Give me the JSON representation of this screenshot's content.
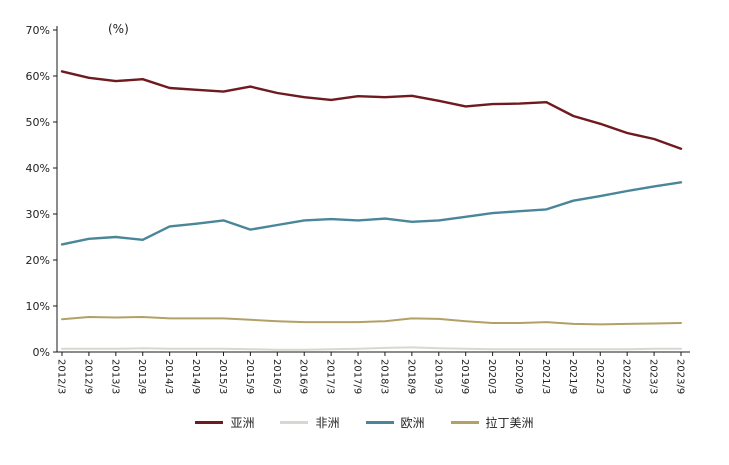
{
  "unit_label": "(%)",
  "chart_data": {
    "type": "line",
    "title": "",
    "xlabel": "",
    "ylabel": "(%)",
    "ylim": [
      0,
      70
    ],
    "ytick_step": 10,
    "ytick_suffix": "%",
    "grid": false,
    "legend_position": "bottom",
    "categories": [
      "2012/3",
      "2012/9",
      "2013/3",
      "2013/9",
      "2014/3",
      "2014/9",
      "2015/3",
      "2015/9",
      "2016/3",
      "2016/9",
      "2017/3",
      "2017/9",
      "2018/3",
      "2018/9",
      "2019/3",
      "2019/9",
      "2020/3",
      "2020/9",
      "2021/3",
      "2021/9",
      "2022/3",
      "2022/9",
      "2023/3",
      "2023/9"
    ],
    "series": [
      {
        "name": "亚洲",
        "color": "#6e1a1f",
        "line_width": 2.4,
        "values": [
          61.0,
          59.6,
          58.9,
          59.3,
          57.4,
          57.0,
          56.6,
          57.7,
          56.3,
          55.4,
          54.8,
          55.6,
          55.4,
          55.7,
          54.6,
          53.4,
          53.9,
          54.0,
          54.3,
          51.3,
          49.6,
          47.6,
          46.3,
          44.2
        ]
      },
      {
        "name": "非洲",
        "color": "#d8d8d2",
        "line_width": 2.0,
        "values": [
          0.7,
          0.7,
          0.7,
          0.8,
          0.7,
          0.7,
          0.7,
          0.6,
          0.5,
          0.5,
          0.6,
          0.7,
          0.9,
          1.0,
          0.8,
          0.7,
          0.6,
          0.6,
          0.6,
          0.6,
          0.6,
          0.6,
          0.7,
          0.7
        ]
      },
      {
        "name": "欧洲",
        "color": "#4a8699",
        "line_width": 2.4,
        "values": [
          23.4,
          24.6,
          25.0,
          24.4,
          27.3,
          27.9,
          28.6,
          26.6,
          27.6,
          28.6,
          28.9,
          28.6,
          29.0,
          28.3,
          28.6,
          29.4,
          30.2,
          30.6,
          31.0,
          32.9,
          33.9,
          35.0,
          36.0,
          36.9
        ]
      },
      {
        "name": "拉丁美洲",
        "color": "#b3a065",
        "line_width": 2.0,
        "values": [
          7.1,
          7.6,
          7.5,
          7.6,
          7.3,
          7.3,
          7.3,
          7.0,
          6.7,
          6.5,
          6.5,
          6.5,
          6.7,
          7.3,
          7.2,
          6.7,
          6.3,
          6.3,
          6.5,
          6.1,
          6.0,
          6.1,
          6.2,
          6.3
        ]
      }
    ]
  }
}
